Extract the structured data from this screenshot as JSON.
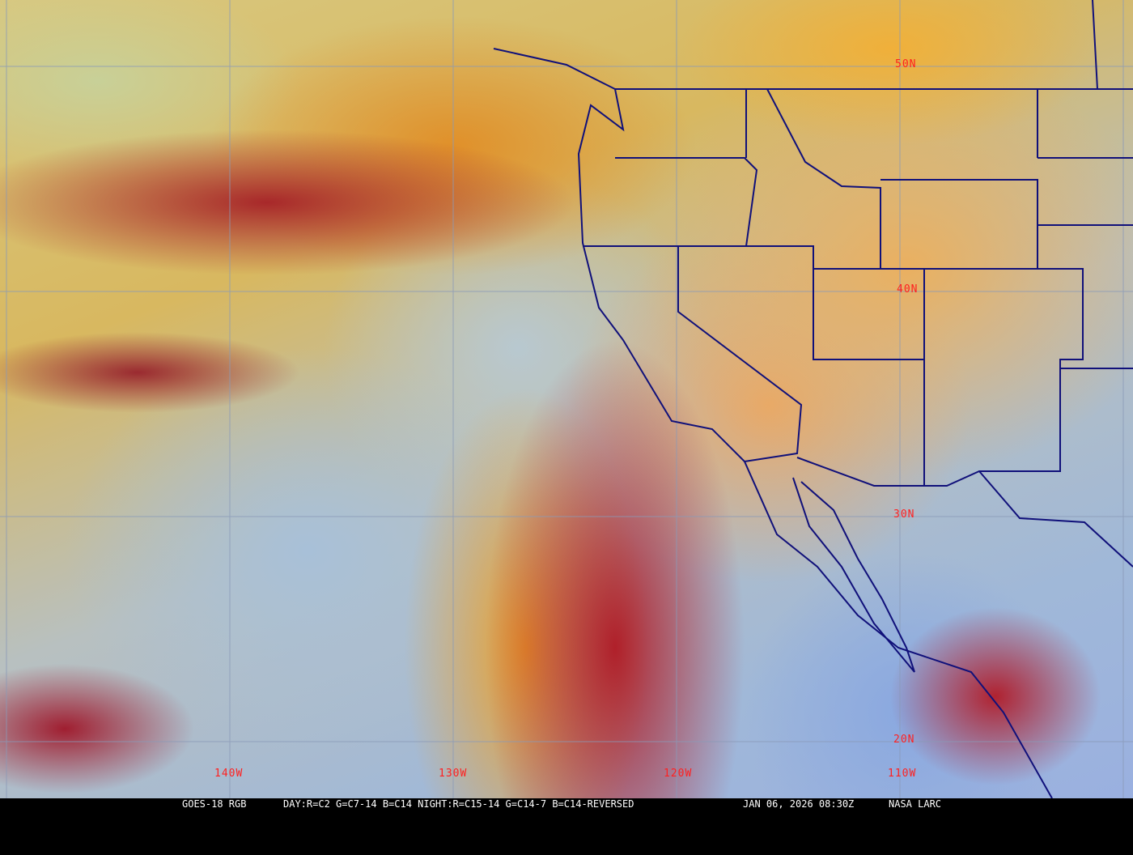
{
  "product": "GOES-18 RGB",
  "recipe": "DAY:R=C2 G=C7-14 B=C14 NIGHT:R=C15-14 G=C14-7 B=C14-REVERSED",
  "timestamp": "JAN 06, 2026 08:30Z",
  "credit": "NASA LARC",
  "latitude_labels": [
    "50N",
    "40N",
    "30N",
    "20N"
  ],
  "longitude_labels": [
    "140W",
    "130W",
    "120W",
    "110W"
  ],
  "colors": {
    "grid": "#8a9ab8",
    "borders": "#10107a",
    "labels": "#ff2020",
    "caption_bg": "#000000"
  }
}
